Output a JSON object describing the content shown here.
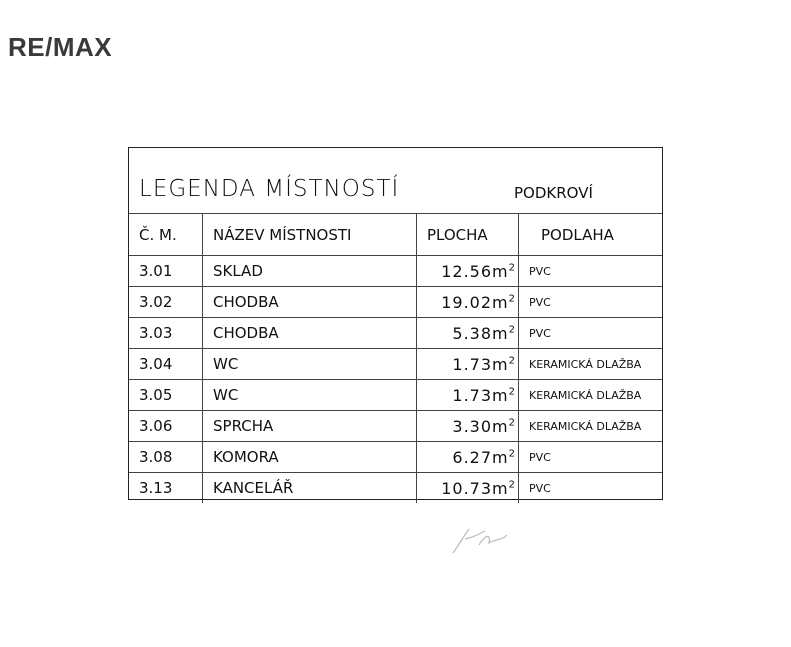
{
  "logo": "RE/MAX",
  "legend": {
    "title": "LEGENDA MÍSTNOSTÍ",
    "subtitle": "PODKROVÍ",
    "headers": [
      "Č. M.",
      "NÁZEV MÍSTNOSTI",
      "PLOCHA",
      "PODLAHA"
    ],
    "unit": "m",
    "unit_exp": "2",
    "rows": [
      {
        "num": "3.01",
        "name": "SKLAD",
        "area": "12.56",
        "floor": "PVC"
      },
      {
        "num": "3.02",
        "name": "CHODBA",
        "area": "19.02",
        "floor": "PVC"
      },
      {
        "num": "3.03",
        "name": "CHODBA",
        "area": "5.38",
        "floor": "PVC"
      },
      {
        "num": "3.04",
        "name": "WC",
        "area": "1.73",
        "floor": "KERAMICKÁ DLAŽBA"
      },
      {
        "num": "3.05",
        "name": "WC",
        "area": "1.73",
        "floor": "KERAMICKÁ DLAŽBA"
      },
      {
        "num": "3.06",
        "name": "SPRCHA",
        "area": "3.30",
        "floor": "KERAMICKÁ DLAŽBA"
      },
      {
        "num": "3.08",
        "name": "KOMORA",
        "area": "6.27",
        "floor": "PVC"
      },
      {
        "num": "3.13",
        "name": "KANCELÁŘ",
        "area": "10.73",
        "floor": "PVC"
      }
    ]
  }
}
